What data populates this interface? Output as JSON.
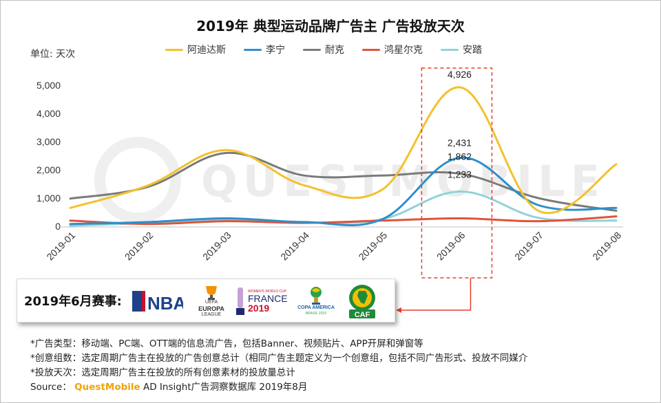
{
  "title": "2019年 典型运动品牌广告主 广告投放天次",
  "unit_label": "单位: 天次",
  "colors": {
    "adidas": "#f3c12a",
    "lining": "#2e8fcb",
    "nike": "#7a7a7a",
    "hongxing": "#e0533a",
    "anta": "#8fd3d8",
    "highlight": "#e83e2e"
  },
  "watermark": "QUESTMOBILE",
  "events": {
    "label": "2019年6月赛事:",
    "logos": [
      {
        "name": "nba-logo",
        "text": "NBA"
      },
      {
        "name": "europa-league-logo",
        "lines": [
          "UEFA",
          "EUROPA",
          "LEAGUE"
        ]
      },
      {
        "name": "womens-world-cup-logo",
        "lines": [
          "WOMEN'S WORLD CUP",
          "FRANCE",
          "2019"
        ]
      },
      {
        "name": "copa-america-logo",
        "lines": [
          "COPA AMERICA",
          "BRASIL 2019"
        ]
      },
      {
        "name": "caf-logo",
        "text": "CAF"
      }
    ]
  },
  "notes": {
    "line1": "*广告类型：移动端、PC端、OTT端的信息流广告，包括Banner、视频贴片、APP开屏和弹窗等",
    "line2": "*创意组数：选定周期广告主在投放的广告创意总计（相同广告主题定义为一个创意组，包括不同广告形式、投放不同媒介",
    "line3": "*投放天次：选定周期广告主在投放的所有创意素材的投放量总计",
    "source_prefix": "Source： ",
    "source_brand": "QuestMobile",
    "source_rest": " AD Insight广告洞察数据库 2019年8月"
  },
  "chart_data": {
    "type": "line",
    "title": "2019年 典型运动品牌广告主 广告投放天次",
    "ylabel": "单位: 天次",
    "categories": [
      "2019-01",
      "2019-02",
      "2019-03",
      "2019-04",
      "2019-05",
      "2019-06",
      "2019-07",
      "2019-08"
    ],
    "yticks": [
      "0",
      "1,000",
      "2,000",
      "3,000",
      "4,000",
      "5,000"
    ],
    "ylim": [
      0,
      5000
    ],
    "legend": "top",
    "grid": false,
    "highlight_category": "2019-06",
    "series": [
      {
        "name": "阿迪达斯",
        "key": "adidas",
        "values": [
          650,
          1450,
          2700,
          1450,
          1300,
          4926,
          550,
          2200
        ]
      },
      {
        "name": "李宁",
        "key": "lining",
        "values": [
          80,
          150,
          280,
          150,
          250,
          2431,
          750,
          650
        ]
      },
      {
        "name": "耐克",
        "key": "nike",
        "values": [
          980,
          1400,
          2600,
          1800,
          1800,
          1862,
          1000,
          550
        ]
      },
      {
        "name": "鸿星尔克",
        "key": "hongxing",
        "values": [
          200,
          80,
          180,
          120,
          200,
          280,
          180,
          350
        ]
      },
      {
        "name": "安踏",
        "key": "anta",
        "values": [
          20,
          120,
          230,
          130,
          250,
          1233,
          300,
          200
        ]
      }
    ],
    "data_labels": [
      {
        "series": "adidas",
        "category": "2019-06",
        "text": "4,926"
      },
      {
        "series": "lining",
        "category": "2019-06",
        "text": "2,431"
      },
      {
        "series": "nike",
        "category": "2019-06",
        "text": "1,862"
      },
      {
        "series": "anta",
        "category": "2019-06",
        "text": "1,233"
      }
    ]
  }
}
